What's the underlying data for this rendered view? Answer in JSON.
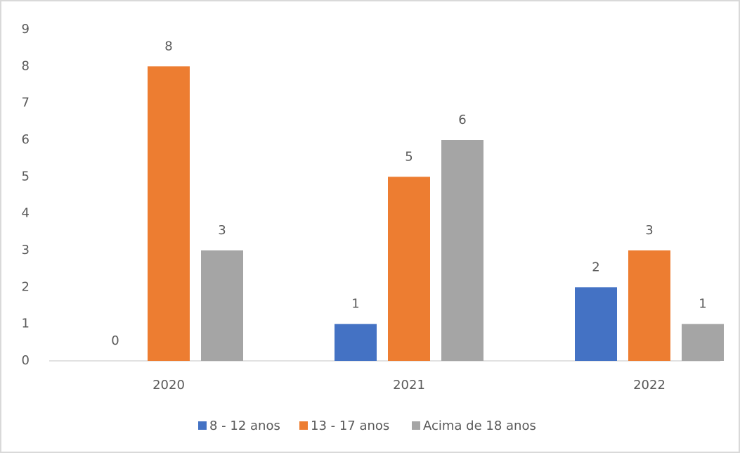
{
  "chart_data": {
    "type": "bar",
    "categories": [
      "2020",
      "2021",
      "2022"
    ],
    "series": [
      {
        "name": "8 - 12 anos",
        "color": "#4472c4",
        "values": [
          0,
          1,
          2
        ]
      },
      {
        "name": "13 - 17 anos",
        "color": "#ed7d31",
        "values": [
          8,
          5,
          3
        ]
      },
      {
        "name": "Acima de 18 anos",
        "color": "#a5a5a5",
        "values": [
          3,
          6,
          1
        ]
      }
    ],
    "ylim": [
      0,
      9
    ],
    "yticks": [
      0,
      1,
      2,
      3,
      4,
      5,
      6,
      7,
      8,
      9
    ],
    "grid": false,
    "data_labels": true,
    "legend": "bottom"
  }
}
